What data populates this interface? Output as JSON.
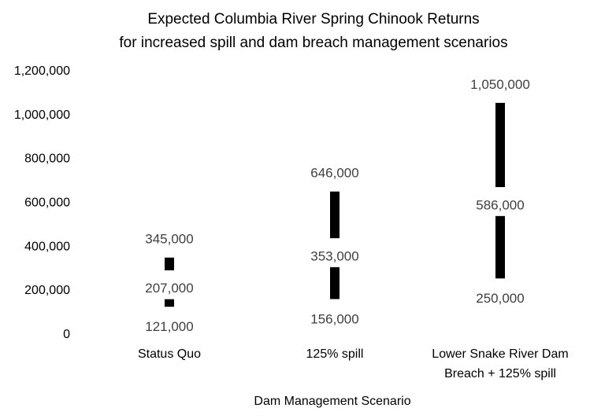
{
  "chart_data": {
    "type": "bar",
    "subtype": "range (floating high–low with median marker)",
    "title_lines": [
      "Expected Columbia River Spring Chinook Returns",
      "for increased spill and dam breach management scenarios"
    ],
    "xlabel": "Dam Management Scenario",
    "ylabel": "",
    "ylim": [
      0,
      1200000
    ],
    "y_ticks": [
      0,
      200000,
      400000,
      600000,
      800000,
      1000000,
      1200000
    ],
    "y_tick_labels": [
      "0",
      "200,000",
      "400,000",
      "600,000",
      "800,000",
      "1,000,000",
      "1,200,000"
    ],
    "grid": false,
    "legend": "none",
    "bar_color": "#000000",
    "categories": [
      [
        "Status Quo"
      ],
      [
        "125% spill"
      ],
      [
        "Lower Snake River Dam",
        "Breach + 125% spill"
      ]
    ],
    "series": [
      {
        "name": "",
        "role": "low",
        "values": [
          121000,
          156000,
          250000
        ]
      },
      {
        "name": "",
        "role": "median",
        "values": [
          207000,
          353000,
          586000
        ]
      },
      {
        "name": "",
        "role": "high",
        "values": [
          345000,
          646000,
          1050000
        ]
      }
    ],
    "data_labels": {
      "low": [
        "121,000",
        "156,000",
        "250,000"
      ],
      "median": [
        "207,000",
        "353,000",
        "586,000"
      ],
      "high": [
        "345,000",
        "646,000",
        "1,050,000"
      ]
    }
  }
}
